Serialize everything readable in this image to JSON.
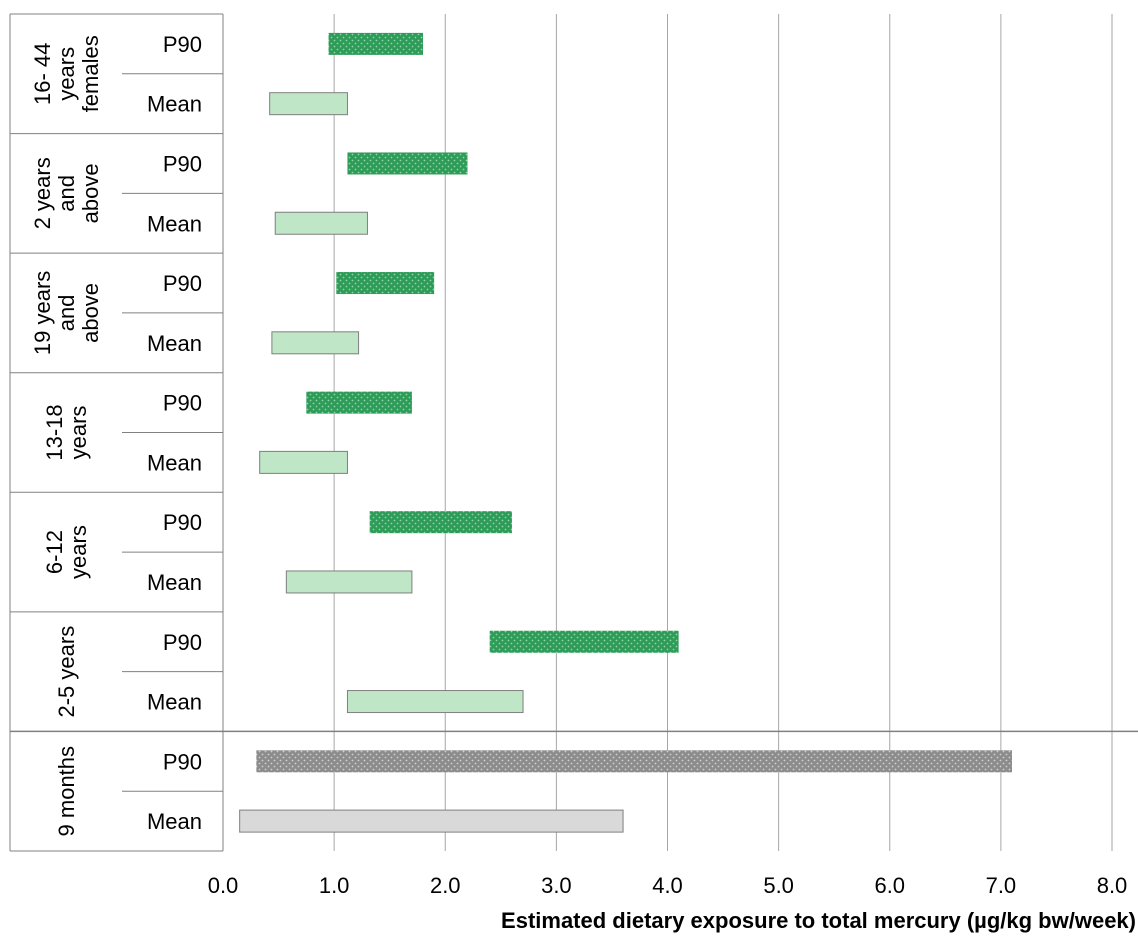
{
  "chart_data": {
    "type": "bar",
    "orientation": "horizontal",
    "subtype": "floating-range",
    "xlabel": "Estimated dietary exposure to total mercury (µg/kg bw/week)",
    "xlim": [
      0,
      8
    ],
    "xticks": [
      "0.0",
      "1.0",
      "2.0",
      "3.0",
      "4.0",
      "5.0",
      "6.0",
      "7.0",
      "8.0"
    ],
    "grid": "vertical",
    "groups": [
      {
        "label": "16- 44 years females",
        "label_lines": [
          "16- 44",
          "years",
          "females"
        ],
        "rows": [
          {
            "stat": "P90",
            "low": 0.95,
            "high": 1.8
          },
          {
            "stat": "Mean",
            "low": 0.42,
            "high": 1.12
          }
        ]
      },
      {
        "label": "2 years and above",
        "label_lines": [
          "2 years",
          "and",
          "above"
        ],
        "rows": [
          {
            "stat": "P90",
            "low": 1.12,
            "high": 2.2
          },
          {
            "stat": "Mean",
            "low": 0.47,
            "high": 1.3
          }
        ]
      },
      {
        "label": "19 years and above",
        "label_lines": [
          "19 years",
          "and",
          "above"
        ],
        "rows": [
          {
            "stat": "P90",
            "low": 1.02,
            "high": 1.9
          },
          {
            "stat": "Mean",
            "low": 0.44,
            "high": 1.22
          }
        ]
      },
      {
        "label": "13-18 years",
        "label_lines": [
          "13-18",
          "years"
        ],
        "rows": [
          {
            "stat": "P90",
            "low": 0.75,
            "high": 1.7
          },
          {
            "stat": "Mean",
            "low": 0.33,
            "high": 1.12
          }
        ]
      },
      {
        "label": "6-12 years",
        "label_lines": [
          "6-12",
          "years"
        ],
        "rows": [
          {
            "stat": "P90",
            "low": 1.32,
            "high": 2.6
          },
          {
            "stat": "Mean",
            "low": 0.57,
            "high": 1.7
          }
        ]
      },
      {
        "label": "2-5 years",
        "label_lines": [
          "2-5 years"
        ],
        "rows": [
          {
            "stat": "P90",
            "low": 2.4,
            "high": 4.1
          },
          {
            "stat": "Mean",
            "low": 1.12,
            "high": 2.7
          }
        ]
      },
      {
        "label": "9 months",
        "label_lines": [
          "9 months"
        ],
        "rows": [
          {
            "stat": "P90",
            "low": 0.3,
            "high": 7.1
          },
          {
            "stat": "Mean",
            "low": 0.15,
            "high": 3.6
          }
        ]
      }
    ],
    "colors": {
      "p90_fill": "#2e9b58",
      "p90_dot": "#8fd4a6",
      "mean_fill": "#bfe6c6",
      "p90_grey_fill": "#8c8c8c",
      "p90_grey_dot": "#cfcfcf",
      "mean_grey_fill": "#d9d9d9",
      "bar_border": "#7f7f7f",
      "grid": "#a6a6a6",
      "separator": "#808080"
    }
  }
}
